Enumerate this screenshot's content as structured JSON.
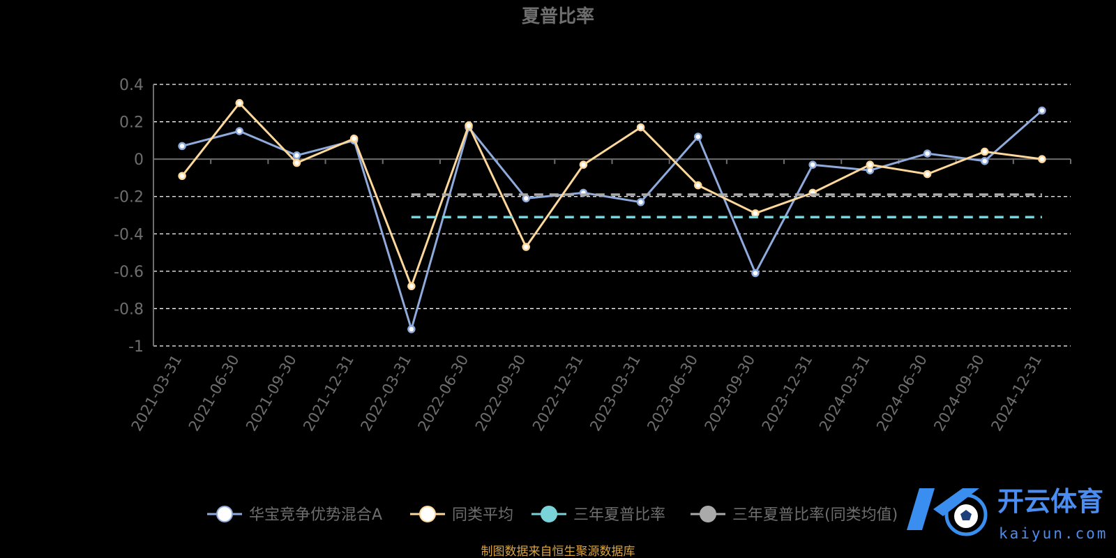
{
  "colors": {
    "fund": "#8faadc",
    "avg": "#fdd89a",
    "sharpe3y": "#79d3d8",
    "sharpe3y_avg": "#aaaaaa",
    "grid": "#ffffff",
    "axis": "#6e6e6e",
    "text": "#6e6e6e",
    "source": "#d9a440",
    "watermark": "#4b8df0"
  },
  "source_note": "制图数据来自恒生聚源数据库",
  "watermark": {
    "logo_icon": "k-soccer-ball-logo-icon",
    "name": "开云体育",
    "sub": "kaiyun.com"
  },
  "chart_data": {
    "type": "line",
    "title": "夏普比率",
    "xlabel": "",
    "ylabel": "",
    "ylim": [
      -1,
      0.4
    ],
    "yticks": [
      0.4,
      0.2,
      0,
      -0.2,
      -0.4,
      -0.6,
      -0.8,
      -1
    ],
    "ytick_labels": [
      "0.4",
      "0.2",
      "0",
      "-0.2",
      "-0.4",
      "-0.6",
      "-0.8",
      "-1"
    ],
    "grid": true,
    "legend_position": "bottom",
    "categories": [
      "2021-03-31",
      "2021-06-30",
      "2021-09-30",
      "2021-12-31",
      "2022-03-31",
      "2022-06-30",
      "2022-09-30",
      "2022-12-31",
      "2023-03-31",
      "2023-06-30",
      "2023-09-30",
      "2023-12-31",
      "2024-03-31",
      "2024-06-30",
      "2024-09-30",
      "2024-12-31"
    ],
    "series": [
      {
        "name": "华宝竞争优势混合A",
        "color_key": "fund",
        "style": "solid-markers",
        "values": [
          0.07,
          0.15,
          0.02,
          0.1,
          -0.91,
          0.17,
          -0.21,
          -0.18,
          -0.23,
          0.12,
          -0.61,
          -0.03,
          -0.06,
          0.03,
          -0.01,
          0.26
        ]
      },
      {
        "name": "同类平均",
        "color_key": "avg",
        "style": "solid-markers",
        "values": [
          -0.09,
          0.3,
          -0.02,
          0.11,
          -0.68,
          0.18,
          -0.47,
          -0.03,
          0.17,
          -0.14,
          -0.29,
          -0.18,
          -0.03,
          -0.08,
          0.04,
          0.0
        ]
      },
      {
        "name": "三年夏普比率",
        "color_key": "sharpe3y",
        "style": "dashed",
        "values": [
          null,
          null,
          null,
          null,
          -0.31,
          -0.31,
          -0.31,
          -0.31,
          -0.31,
          -0.31,
          -0.31,
          -0.31,
          -0.31,
          -0.31,
          -0.31,
          -0.31
        ]
      },
      {
        "name": "三年夏普比率(同类均值)",
        "color_key": "sharpe3y_avg",
        "style": "dashed",
        "values": [
          null,
          null,
          null,
          null,
          -0.19,
          -0.19,
          -0.19,
          -0.19,
          -0.19,
          -0.19,
          -0.19,
          -0.19,
          -0.19,
          -0.19,
          -0.19,
          -0.19
        ]
      }
    ]
  }
}
